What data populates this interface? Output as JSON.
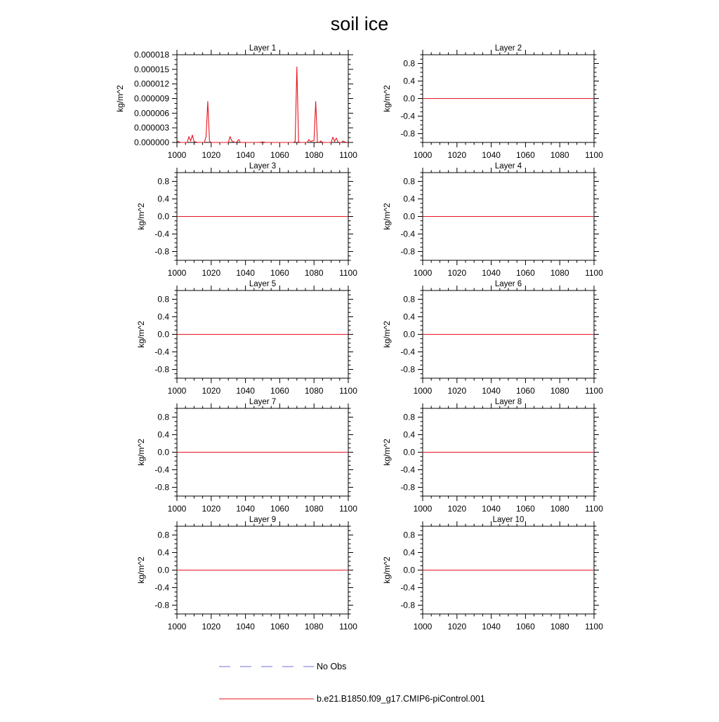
{
  "figure": {
    "title": "soil ice",
    "colors": {
      "model": "#e8141e",
      "obs": "#6f6fd8",
      "axis": "#000000"
    }
  },
  "legend": {
    "entries": [
      {
        "label": "No Obs",
        "style": "dashed",
        "color": "#6f6fd8"
      },
      {
        "label": "b.e21.B1850.f09_g17.CMIP6-piControl.001",
        "style": "solid",
        "color": "#e8141e"
      }
    ]
  },
  "chart_data": [
    {
      "type": "line",
      "title": "Layer 1",
      "xlabel": "",
      "ylabel": "kg/m^2",
      "xlim": [
        1000,
        1100
      ],
      "ylim": [
        0,
        1.8e-05
      ],
      "xticks": [
        "1000",
        "1020",
        "1040",
        "1060",
        "1080",
        "1100"
      ],
      "yticks": [
        "0.000000",
        "0.000003",
        "0.000006",
        "0.000009",
        "0.000012",
        "0.000015",
        "0.000018"
      ],
      "series": [
        {
          "name": "b.e21.B1850.f09_g17.CMIP6-piControl.001",
          "x": [
            1000,
            1002,
            1004,
            1006,
            1007,
            1008,
            1009,
            1010,
            1012,
            1014,
            1016,
            1017,
            1018,
            1019,
            1020,
            1022,
            1024,
            1026,
            1028,
            1030,
            1031,
            1032,
            1034,
            1035,
            1036,
            1037,
            1038,
            1040,
            1042,
            1044,
            1046,
            1048,
            1050,
            1052,
            1054,
            1056,
            1058,
            1060,
            1062,
            1064,
            1066,
            1068,
            1069,
            1070,
            1071,
            1072,
            1074,
            1076,
            1077,
            1078,
            1079,
            1080,
            1081,
            1082,
            1083,
            1084,
            1085,
            1086,
            1088,
            1090,
            1091,
            1092,
            1093,
            1094,
            1095,
            1096,
            1097,
            1098,
            1099,
            1100
          ],
          "y": [
            3e-07,
            0,
            0,
            0,
            1.2e-06,
            3e-07,
            1.5e-06,
            2e-07,
            0,
            0,
            0,
            1.2e-06,
            8.4e-06,
            3e-07,
            0,
            0,
            0,
            0,
            0,
            0,
            1.2e-06,
            3e-07,
            0,
            1e-07,
            6e-07,
            0,
            0,
            0,
            0,
            0,
            0,
            0,
            1e-07,
            0,
            0,
            0,
            0,
            0,
            0,
            0,
            0,
            0,
            2e-07,
            1.55e-05,
            1e-07,
            0,
            0,
            0,
            6e-07,
            2e-07,
            3e-07,
            4e-07,
            8.4e-06,
            1e-07,
            0,
            3e-07,
            0,
            0,
            0,
            0,
            1.1e-06,
            2e-07,
            9e-07,
            1e-07,
            0,
            0,
            3e-07,
            1e-07,
            0,
            1e-07
          ]
        }
      ]
    },
    {
      "type": "line",
      "title": "Layer 2",
      "xlabel": "",
      "ylabel": "kg/m^2",
      "xlim": [
        1000,
        1100
      ],
      "ylim": [
        -1,
        1
      ],
      "xticks": [
        "1000",
        "1020",
        "1040",
        "1060",
        "1080",
        "1100"
      ],
      "yticks": [
        "-0.8",
        "-0.4",
        "0.0",
        "0.4",
        "0.8"
      ],
      "series": [
        {
          "name": "b.e21.B1850.f09_g17.CMIP6-piControl.001",
          "x": [
            1000,
            1100
          ],
          "y": [
            0,
            0
          ]
        }
      ]
    },
    {
      "type": "line",
      "title": "Layer 3",
      "xlabel": "",
      "ylabel": "kg/m^2",
      "xlim": [
        1000,
        1100
      ],
      "ylim": [
        -1,
        1
      ],
      "xticks": [
        "1000",
        "1020",
        "1040",
        "1060",
        "1080",
        "1100"
      ],
      "yticks": [
        "-0.8",
        "-0.4",
        "0.0",
        "0.4",
        "0.8"
      ],
      "series": [
        {
          "name": "b.e21.B1850.f09_g17.CMIP6-piControl.001",
          "x": [
            1000,
            1100
          ],
          "y": [
            0,
            0
          ]
        }
      ]
    },
    {
      "type": "line",
      "title": "Layer 4",
      "xlabel": "",
      "ylabel": "kg/m^2",
      "xlim": [
        1000,
        1100
      ],
      "ylim": [
        -1,
        1
      ],
      "xticks": [
        "1000",
        "1020",
        "1040",
        "1060",
        "1080",
        "1100"
      ],
      "yticks": [
        "-0.8",
        "-0.4",
        "0.0",
        "0.4",
        "0.8"
      ],
      "series": [
        {
          "name": "b.e21.B1850.f09_g17.CMIP6-piControl.001",
          "x": [
            1000,
            1100
          ],
          "y": [
            0,
            0
          ]
        }
      ]
    },
    {
      "type": "line",
      "title": "Layer 5",
      "xlabel": "",
      "ylabel": "kg/m^2",
      "xlim": [
        1000,
        1100
      ],
      "ylim": [
        -1,
        1
      ],
      "xticks": [
        "1000",
        "1020",
        "1040",
        "1060",
        "1080",
        "1100"
      ],
      "yticks": [
        "-0.8",
        "-0.4",
        "0.0",
        "0.4",
        "0.8"
      ],
      "series": [
        {
          "name": "b.e21.B1850.f09_g17.CMIP6-piControl.001",
          "x": [
            1000,
            1100
          ],
          "y": [
            0,
            0
          ]
        }
      ]
    },
    {
      "type": "line",
      "title": "Layer 6",
      "xlabel": "",
      "ylabel": "kg/m^2",
      "xlim": [
        1000,
        1100
      ],
      "ylim": [
        -1,
        1
      ],
      "xticks": [
        "1000",
        "1020",
        "1040",
        "1060",
        "1080",
        "1100"
      ],
      "yticks": [
        "-0.8",
        "-0.4",
        "0.0",
        "0.4",
        "0.8"
      ],
      "series": [
        {
          "name": "b.e21.B1850.f09_g17.CMIP6-piControl.001",
          "x": [
            1000,
            1100
          ],
          "y": [
            0,
            0
          ]
        }
      ]
    },
    {
      "type": "line",
      "title": "Layer 7",
      "xlabel": "",
      "ylabel": "kg/m^2",
      "xlim": [
        1000,
        1100
      ],
      "ylim": [
        -1,
        1
      ],
      "xticks": [
        "1000",
        "1020",
        "1040",
        "1060",
        "1080",
        "1100"
      ],
      "yticks": [
        "-0.8",
        "-0.4",
        "0.0",
        "0.4",
        "0.8"
      ],
      "series": [
        {
          "name": "b.e21.B1850.f09_g17.CMIP6-piControl.001",
          "x": [
            1000,
            1100
          ],
          "y": [
            0,
            0
          ]
        }
      ]
    },
    {
      "type": "line",
      "title": "Layer 8",
      "xlabel": "",
      "ylabel": "kg/m^2",
      "xlim": [
        1000,
        1100
      ],
      "ylim": [
        -1,
        1
      ],
      "xticks": [
        "1000",
        "1020",
        "1040",
        "1060",
        "1080",
        "1100"
      ],
      "yticks": [
        "-0.8",
        "-0.4",
        "0.0",
        "0.4",
        "0.8"
      ],
      "series": [
        {
          "name": "b.e21.B1850.f09_g17.CMIP6-piControl.001",
          "x": [
            1000,
            1100
          ],
          "y": [
            0,
            0
          ]
        }
      ]
    },
    {
      "type": "line",
      "title": "Layer 9",
      "xlabel": "",
      "ylabel": "kg/m^2",
      "xlim": [
        1000,
        1100
      ],
      "ylim": [
        -1,
        1
      ],
      "xticks": [
        "1000",
        "1020",
        "1040",
        "1060",
        "1080",
        "1100"
      ],
      "yticks": [
        "-0.8",
        "-0.4",
        "0.0",
        "0.4",
        "0.8"
      ],
      "series": [
        {
          "name": "b.e21.B1850.f09_g17.CMIP6-piControl.001",
          "x": [
            1000,
            1100
          ],
          "y": [
            0,
            0
          ]
        }
      ]
    },
    {
      "type": "line",
      "title": "Layer 10",
      "xlabel": "",
      "ylabel": "kg/m^2",
      "xlim": [
        1000,
        1100
      ],
      "ylim": [
        -1,
        1
      ],
      "xticks": [
        "1000",
        "1020",
        "1040",
        "1060",
        "1080",
        "1100"
      ],
      "yticks": [
        "-0.8",
        "-0.4",
        "0.0",
        "0.4",
        "0.8"
      ],
      "series": [
        {
          "name": "b.e21.B1850.f09_g17.CMIP6-piControl.001",
          "x": [
            1000,
            1100
          ],
          "y": [
            0,
            0
          ]
        }
      ]
    }
  ]
}
